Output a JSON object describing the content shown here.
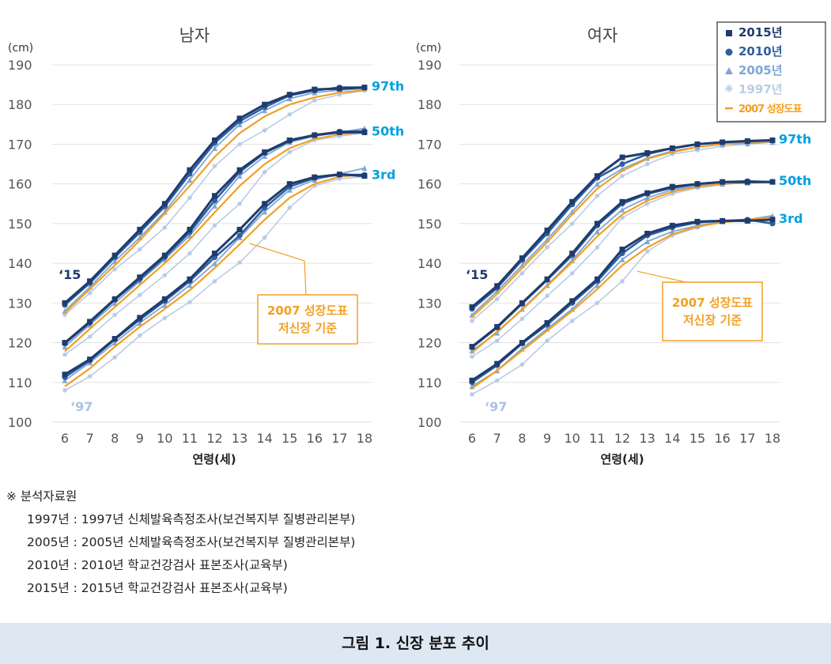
{
  "chart_data": [
    {
      "type": "line",
      "title": "남자",
      "ylabel": "(cm)",
      "xlabel": "연령(세)",
      "x": [
        6,
        7,
        8,
        9,
        10,
        11,
        12,
        13,
        14,
        15,
        16,
        17,
        18
      ],
      "ylim": [
        100,
        190
      ],
      "yticks": [
        100,
        110,
        120,
        130,
        140,
        150,
        160,
        170,
        180,
        190
      ],
      "percentile_labels": [
        "97th",
        "50th",
        "3rd"
      ],
      "tag_15": "‘15",
      "tag_97": "‘97",
      "annotation": [
        "2007 성장도표",
        "저신장 기준"
      ],
      "series": [
        {
          "name": "2015년",
          "percentiles": {
            "p97": [
              130,
              135.5,
              142,
              148.5,
              155,
              163.5,
              171,
              176.5,
              180,
              182.5,
              183.8,
              184,
              184.3
            ],
            "p50": [
              120,
              125.3,
              131,
              136.5,
              142,
              148.5,
              157,
              163.5,
              168,
              171,
              172.3,
              173,
              173
            ],
            "p3": [
              112,
              115.8,
              121,
              126.3,
              131,
              136,
              142.5,
              148.5,
              155,
              160,
              161.7,
              162.4,
              162
            ]
          }
        },
        {
          "name": "2010년",
          "percentiles": {
            "p97": [
              129.5,
              135,
              141.5,
              147.8,
              154.3,
              162.5,
              170.3,
              175.8,
              179.3,
              182.3,
              183.5,
              184.3,
              184.3
            ],
            "p50": [
              119.8,
              125,
              130.8,
              136,
              141.5,
              147.8,
              155.8,
              163,
              167.8,
              170.8,
              172.3,
              173.2,
              173.3
            ],
            "p3": [
              111.3,
              115.5,
              120.8,
              125.8,
              130.5,
              135.5,
              141.5,
              147,
              154,
              159.3,
              161.5,
              162.3,
              162.3
            ]
          }
        },
        {
          "name": "2005년",
          "percentiles": {
            "p97": [
              128,
              134,
              140.5,
              146.5,
              153,
              161,
              169,
              175,
              178.5,
              181.5,
              183,
              183.6,
              184
            ],
            "p50": [
              119,
              124.5,
              130,
              135.5,
              141,
              147,
              154.5,
              162,
              167,
              170.5,
              172,
              173,
              174
            ],
            "p3": [
              110.5,
              115,
              120,
              125,
              129.5,
              134.5,
              140,
              146.5,
              153,
              158.5,
              161,
              162.5,
              164
            ]
          }
        },
        {
          "name": "1997년",
          "percentiles": {
            "p97": [
              127,
              132.5,
              138.5,
              143.5,
              149,
              156.5,
              164.5,
              170,
              173.5,
              177.5,
              181,
              182.5,
              183.5
            ],
            "p50": [
              117,
              121.5,
              127,
              132,
              137,
              142.5,
              149.5,
              155,
              163,
              168,
              171,
              172,
              172.8
            ],
            "p3": [
              108,
              111.5,
              116.3,
              121.8,
              126.2,
              130.2,
              135.5,
              140.2,
              146.5,
              154,
              159.5,
              161.3,
              161.8
            ]
          }
        },
        {
          "name": "2007 성장도표",
          "percentiles": {
            "p97": [
              127.5,
              133.5,
              139.5,
              145.8,
              152.5,
              159.5,
              166.8,
              172.8,
              177,
              180,
              181.8,
              183,
              183.6
            ],
            "p50": [
              117.8,
              123.5,
              129,
              134.5,
              140,
              146,
              152.8,
              159.5,
              165,
              169,
              171.3,
              172.5,
              173
            ],
            "p3": [
              109,
              113.5,
              119,
              124,
              128.5,
              133.2,
              138.8,
              144.8,
              151,
              156.5,
              160,
              161.8,
              162.5
            ]
          }
        }
      ]
    },
    {
      "type": "line",
      "title": "여자",
      "ylabel": "(cm)",
      "xlabel": "연령(세)",
      "x": [
        6,
        7,
        8,
        9,
        10,
        11,
        12,
        13,
        14,
        15,
        16,
        17,
        18
      ],
      "ylim": [
        100,
        190
      ],
      "yticks": [
        100,
        110,
        120,
        130,
        140,
        150,
        160,
        170,
        180,
        190
      ],
      "percentile_labels": [
        "97th",
        "50th",
        "3rd"
      ],
      "tag_15": "‘15",
      "tag_97": "‘97",
      "annotation": [
        "2007 성장도표",
        "저신장 기준"
      ],
      "series": [
        {
          "name": "2015년",
          "percentiles": {
            "p97": [
              129,
              134.3,
              141.3,
              148.3,
              155.5,
              162,
              166.7,
              167.8,
              169,
              170,
              170.5,
              170.8,
              171
            ],
            "p50": [
              119,
              124,
              130,
              136,
              142.5,
              150,
              155.5,
              157.7,
              159.3,
              160,
              160.5,
              160.5,
              160.5
            ],
            "p3": [
              110.5,
              114.7,
              120,
              125,
              130.5,
              136,
              143.5,
              147.5,
              149.5,
              150.5,
              150.7,
              150.7,
              151
            ]
          }
        },
        {
          "name": "2010년",
          "percentiles": {
            "p97": [
              128.5,
              133.8,
              140.8,
              147.5,
              154.8,
              161.5,
              165,
              167.5,
              169,
              170,
              170.5,
              170.7,
              171
            ],
            "p50": [
              118.8,
              123.8,
              129.8,
              135.8,
              142,
              149.5,
              155,
              157.5,
              159,
              160,
              160.5,
              160.7,
              160.5
            ],
            "p3": [
              110,
              114.3,
              119.8,
              124.5,
              130,
              135.5,
              142.5,
              147,
              149,
              150.3,
              150.7,
              151,
              150
            ]
          }
        },
        {
          "name": "2005년",
          "percentiles": {
            "p97": [
              127,
              133,
              139.5,
              146,
              153,
              160,
              163.8,
              166.5,
              168.3,
              169.3,
              170,
              170.2,
              170.5
            ],
            "p50": [
              118,
              122.5,
              128.5,
              134.5,
              140.8,
              148,
              153.5,
              156.5,
              158.5,
              159.5,
              160,
              160.3,
              160.7
            ],
            "p3": [
              109,
              113,
              118.5,
              123.5,
              128.5,
              134.5,
              141,
              145.5,
              148,
              149.5,
              150.5,
              151,
              152
            ]
          }
        },
        {
          "name": "1997년",
          "percentiles": {
            "p97": [
              125.5,
              131,
              137.5,
              144,
              150,
              157,
              162,
              165,
              167.5,
              168.5,
              169.5,
              170,
              170.5
            ],
            "p50": [
              116.5,
              120.5,
              126,
              131.8,
              137.5,
              144,
              151.5,
              155,
              157.5,
              159,
              159.8,
              160.5,
              160.5
            ],
            "p3": [
              107,
              110.5,
              114.5,
              120.5,
              125.5,
              130,
              135.5,
              143,
              147,
              149,
              150.5,
              151,
              151.5
            ]
          }
        },
        {
          "name": "2007 성장도표",
          "percentiles": {
            "p97": [
              126.5,
              132.3,
              138.8,
              145.3,
              152.3,
              158.8,
              163.3,
              166.3,
              168,
              169.3,
              170,
              170.5,
              170.7
            ],
            "p50": [
              117.5,
              122.8,
              128.3,
              134.3,
              140.3,
              146.8,
              152.3,
              155.8,
              158,
              159.3,
              160,
              160.3,
              160.5
            ],
            "p3": [
              108.5,
              113,
              118,
              123,
              128,
              133.5,
              139.5,
              144,
              147.3,
              149.3,
              150.3,
              151,
              151.5
            ]
          }
        }
      ]
    }
  ],
  "legend": [
    {
      "label": "2015년",
      "color": "#1f3c6e",
      "marker": "square"
    },
    {
      "label": "2010년",
      "color": "#2f5f9e",
      "marker": "circle"
    },
    {
      "label": "2005년",
      "color": "#7fa6d6",
      "marker": "triangle"
    },
    {
      "label": "1997년",
      "color": "#b9cde7",
      "marker": "star"
    },
    {
      "label": "2007 성장도표",
      "color": "#f2a023",
      "marker": "dash"
    }
  ],
  "colors": {
    "s2015": "#1f3c6e",
    "s2010": "#2f5f9e",
    "s2005": "#7fa6d6",
    "s1997": "#b4c9e6",
    "growth": "#f2a023",
    "pct_label": "#00a0e0",
    "axis_text": "#555555",
    "tag15": "#1f3c6e",
    "tag97": "#a9c3e3"
  },
  "notes": {
    "header": "※  분석자료원",
    "lines": [
      "1997년  :  1997년  신체발육측정조사(보건복지부  질병관리본부)",
      "2005년  :  2005년  신체발육측정조사(보건복지부  질병관리본부)",
      "2010년  :  2010년  학교건강검사  표본조사(교육부)",
      "2015년  :  2015년  학교건강검사  표본조사(교육부)"
    ]
  },
  "caption": "그림  1.  신장  분포  추이"
}
